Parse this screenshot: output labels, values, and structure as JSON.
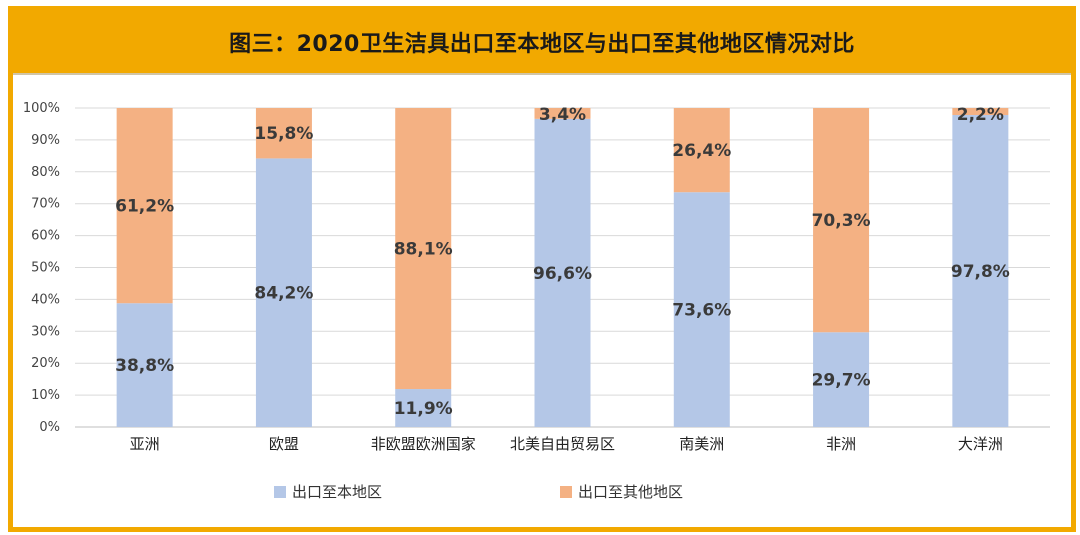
{
  "title": "图三：2020卫生洁具出口至本地区与出口至其他地区情况对比",
  "chart_data": {
    "type": "bar",
    "stacked": true,
    "percent": true,
    "categories": [
      "亚洲",
      "欧盟",
      "非欧盟欧洲国家",
      "北美自由贸易区",
      "南美洲",
      "非洲",
      "大洋洲"
    ],
    "series": [
      {
        "name": "出口至本地区",
        "color": "#b4c7e7",
        "values": [
          38.8,
          84.2,
          11.9,
          96.6,
          73.6,
          29.7,
          97.8
        ],
        "labels": [
          "38,8%",
          "84,2%",
          "11,9%",
          "96,6%",
          "73,6%",
          "29,7%",
          "97,8%"
        ]
      },
      {
        "name": "出口至其他地区",
        "color": "#f4b183",
        "values": [
          61.2,
          15.8,
          88.1,
          3.4,
          26.4,
          70.3,
          2.2
        ],
        "labels": [
          "61,2%",
          "15,8%",
          "88,1%",
          "3,4%",
          "26,4%",
          "70,3%",
          "2,2%"
        ]
      }
    ],
    "yticks": [
      "0%",
      "10%",
      "20%",
      "30%",
      "40%",
      "50%",
      "60%",
      "70%",
      "80%",
      "90%",
      "100%"
    ],
    "ylim": [
      0,
      100
    ],
    "grid": true,
    "legend": "bottom"
  }
}
